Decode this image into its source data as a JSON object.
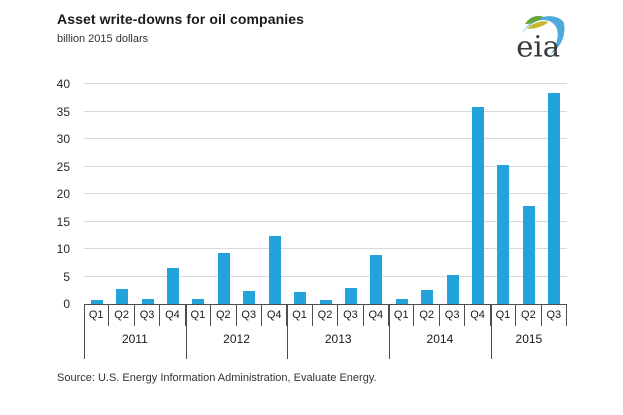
{
  "logo": {
    "text": "eia"
  },
  "source": "Source: U.S. Energy Information Administration, Evaluate Energy.",
  "colors": {
    "bar": "#23a3dc",
    "gridline": "#d9d9d9",
    "axis": "#4d4d4d",
    "logo_blue": "#2e9bd6",
    "logo_green": "#65a83a",
    "logo_yellow": "#c8b72e"
  },
  "chart_data": {
    "type": "bar",
    "title": "Asset write-downs for oil companies",
    "unit_label": "billion 2015 dollars",
    "ylabel": "billion 2015 dollars",
    "xlabel": "",
    "ylim": [
      0,
      40
    ],
    "yticks": [
      0,
      5,
      10,
      15,
      20,
      25,
      30,
      35,
      40
    ],
    "grid": "horizontal",
    "legend": "none",
    "groups": [
      {
        "year": "2011",
        "quarters": [
          "Q1",
          "Q2",
          "Q3",
          "Q4"
        ],
        "values": [
          0.7,
          2.8,
          1.0,
          6.5
        ]
      },
      {
        "year": "2012",
        "quarters": [
          "Q1",
          "Q2",
          "Q3",
          "Q4"
        ],
        "values": [
          1.0,
          9.3,
          2.4,
          12.4
        ]
      },
      {
        "year": "2013",
        "quarters": [
          "Q1",
          "Q2",
          "Q3",
          "Q4"
        ],
        "values": [
          2.1,
          0.8,
          3.0,
          8.9
        ]
      },
      {
        "year": "2014",
        "quarters": [
          "Q1",
          "Q2",
          "Q3",
          "Q4"
        ],
        "values": [
          0.9,
          2.5,
          5.3,
          35.8
        ]
      },
      {
        "year": "2015",
        "quarters": [
          "Q1",
          "Q2",
          "Q3"
        ],
        "values": [
          25.2,
          17.9,
          38.4
        ]
      }
    ]
  }
}
